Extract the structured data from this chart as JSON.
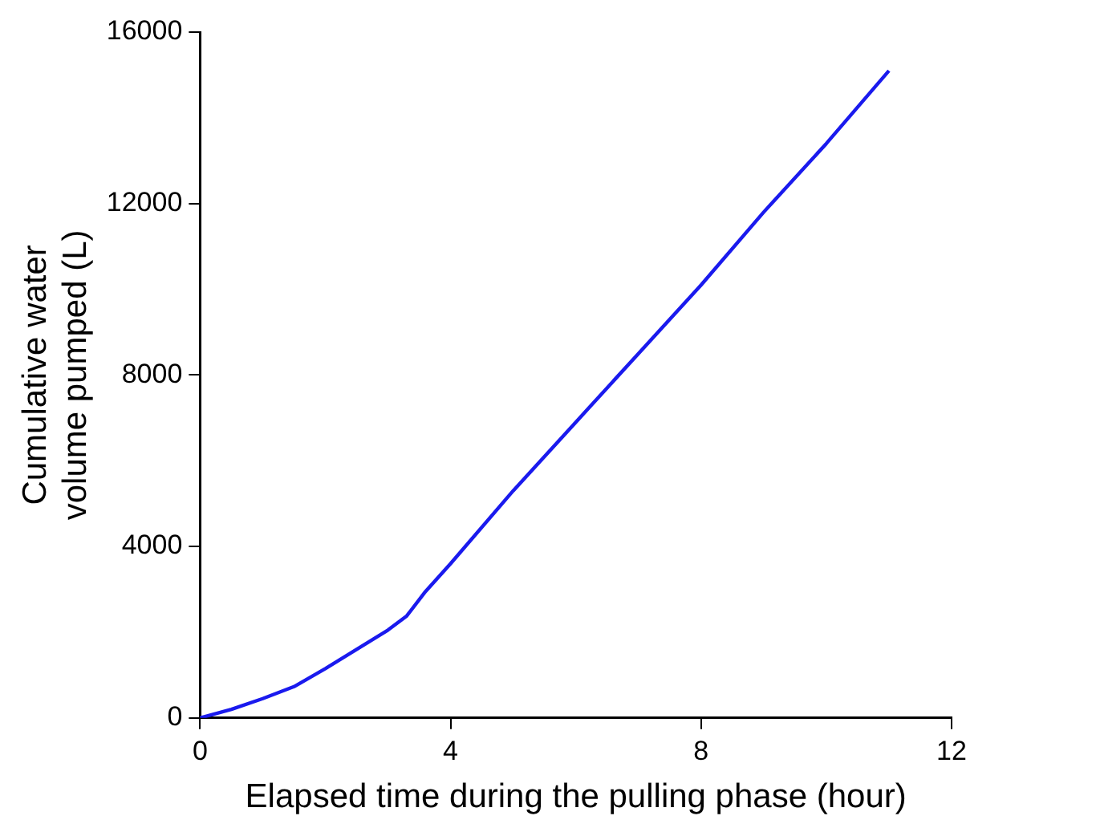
{
  "chart_data": {
    "type": "line",
    "xlabel": "Elapsed time during the pulling phase (hour)",
    "ylabel": "Cumulative water volume pumped (L)",
    "x": [
      0,
      0.5,
      1,
      1.5,
      2,
      2.5,
      3,
      3.3,
      3.6,
      4,
      5,
      6,
      7,
      8,
      9,
      10,
      11
    ],
    "series": [
      {
        "color": "#1a1aee",
        "values": [
          0,
          200,
          450,
          730,
          1150,
          1600,
          2050,
          2380,
          2950,
          3600,
          5300,
          6900,
          8500,
          10100,
          11800,
          13400,
          15100
        ]
      }
    ],
    "xlim": [
      0,
      12
    ],
    "xticks": [
      0,
      4,
      8,
      12
    ],
    "ylim": [
      0,
      16000
    ],
    "yticks": [
      0,
      4000,
      8000,
      12000,
      16000
    ],
    "grid": false,
    "legend": false,
    "marker": "none",
    "line_style": "solid"
  }
}
